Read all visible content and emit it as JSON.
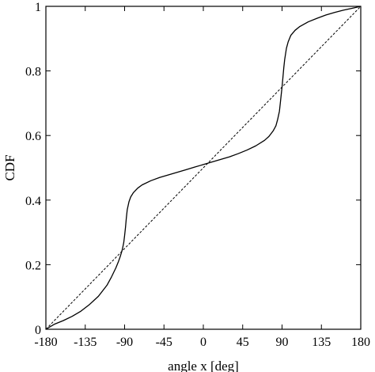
{
  "chart_data": {
    "type": "line",
    "title": "",
    "xlabel": "angle x [deg]",
    "ylabel": "CDF",
    "xlim": [
      -180,
      180
    ],
    "ylim": [
      0,
      1
    ],
    "xticks": [
      -180,
      -135,
      -90,
      -45,
      0,
      45,
      90,
      135,
      180
    ],
    "xtick_labels": [
      "-180",
      "-135",
      "-90",
      "-45",
      "0",
      "45",
      "90",
      "135",
      "180"
    ],
    "yticks": [
      0,
      0.2,
      0.4,
      0.6,
      0.8,
      1
    ],
    "ytick_labels": [
      "0",
      "0.2",
      "0.4",
      "0.6",
      "0.8",
      "1"
    ],
    "grid": false,
    "legend": "none",
    "series": [
      {
        "style": "solid",
        "color": "#000000",
        "x": [
          -180,
          -170,
          -160,
          -150,
          -140,
          -130,
          -120,
          -110,
          -105,
          -100,
          -97,
          -95,
          -93,
          -92,
          -91,
          -90,
          -89,
          -88,
          -87,
          -85,
          -83,
          -80,
          -75,
          -70,
          -60,
          -50,
          -40,
          -30,
          -20,
          -10,
          0,
          10,
          20,
          30,
          40,
          50,
          60,
          70,
          75,
          80,
          83,
          85,
          87,
          88,
          89,
          90,
          91,
          92,
          93,
          95,
          97,
          100,
          105,
          110,
          120,
          130,
          140,
          150,
          160,
          170,
          180
        ],
        "y": [
          0,
          0.016,
          0.027,
          0.04,
          0.056,
          0.077,
          0.102,
          0.137,
          0.162,
          0.19,
          0.21,
          0.225,
          0.243,
          0.255,
          0.268,
          0.29,
          0.315,
          0.345,
          0.37,
          0.395,
          0.41,
          0.423,
          0.437,
          0.447,
          0.46,
          0.47,
          0.478,
          0.486,
          0.494,
          0.502,
          0.51,
          0.518,
          0.526,
          0.534,
          0.544,
          0.555,
          0.568,
          0.585,
          0.597,
          0.615,
          0.63,
          0.65,
          0.675,
          0.7,
          0.725,
          0.75,
          0.78,
          0.81,
          0.835,
          0.87,
          0.89,
          0.91,
          0.926,
          0.937,
          0.952,
          0.963,
          0.973,
          0.981,
          0.988,
          0.994,
          1
        ]
      },
      {
        "style": "dashed",
        "color": "#000000",
        "x": [
          -180,
          180
        ],
        "y": [
          0,
          1
        ]
      }
    ]
  }
}
